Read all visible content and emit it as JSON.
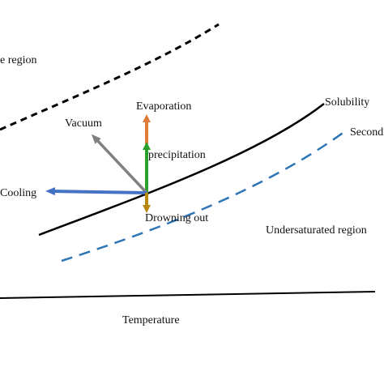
{
  "labels": {
    "labile_region": "e  region",
    "evaporation": "Evaporation",
    "vacuum": "Vacuum",
    "precipitation": "precipitation",
    "cooling": "Cooling",
    "drowning_out": "Drowning out",
    "solubility": "Solubility",
    "secondary": "Second",
    "undersaturated_region": "Undersaturated region",
    "temperature": "Temperature"
  },
  "colors": {
    "curves": "#000000",
    "secondary_curve": "#2e75b6",
    "evaporation_arrow": "#e07b39",
    "vacuum_arrow": "#808080",
    "precipitation_arrow": "#2ca02c",
    "cooling_arrow": "#4472c4",
    "drowning_out_arrow": "#b8860b"
  }
}
